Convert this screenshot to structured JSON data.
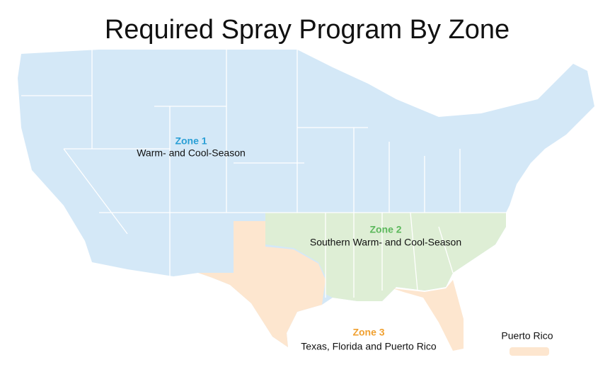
{
  "title": "Required Spray Program By Zone",
  "zones": [
    {
      "name": "Zone 1",
      "description": "Warm- and Cool-Season"
    },
    {
      "name": "Zone 2",
      "description": "Southern Warm- and Cool-Season"
    },
    {
      "name": "Zone 3",
      "description": "Texas, Florida and Puerto Rico"
    }
  ],
  "puerto_rico_label": "Puerto Rico"
}
